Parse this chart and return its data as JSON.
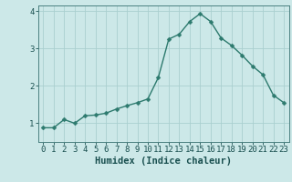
{
  "x": [
    0,
    1,
    2,
    3,
    4,
    5,
    6,
    7,
    8,
    9,
    10,
    11,
    12,
    13,
    14,
    15,
    16,
    17,
    18,
    19,
    20,
    21,
    22,
    23
  ],
  "y": [
    0.88,
    0.88,
    1.1,
    1.0,
    1.2,
    1.22,
    1.27,
    1.38,
    1.47,
    1.55,
    1.65,
    2.22,
    3.25,
    3.38,
    3.72,
    3.93,
    3.72,
    3.28,
    3.08,
    2.82,
    2.53,
    2.3,
    1.75,
    1.55
  ],
  "line_color": "#2d7a6e",
  "marker_color": "#2d7a6e",
  "bg_color": "#cce8e8",
  "grid_color": "#aacfcf",
  "xlabel": "Humidex (Indice chaleur)",
  "xlim": [
    -0.5,
    23.5
  ],
  "ylim": [
    0.5,
    4.15
  ],
  "yticks": [
    1,
    2,
    3,
    4
  ],
  "xticks": [
    0,
    1,
    2,
    3,
    4,
    5,
    6,
    7,
    8,
    9,
    10,
    11,
    12,
    13,
    14,
    15,
    16,
    17,
    18,
    19,
    20,
    21,
    22,
    23
  ],
  "xlabel_fontsize": 7.5,
  "tick_fontsize": 6.5,
  "tick_color": "#1a5050",
  "line_width": 1.0,
  "marker_size": 2.5
}
